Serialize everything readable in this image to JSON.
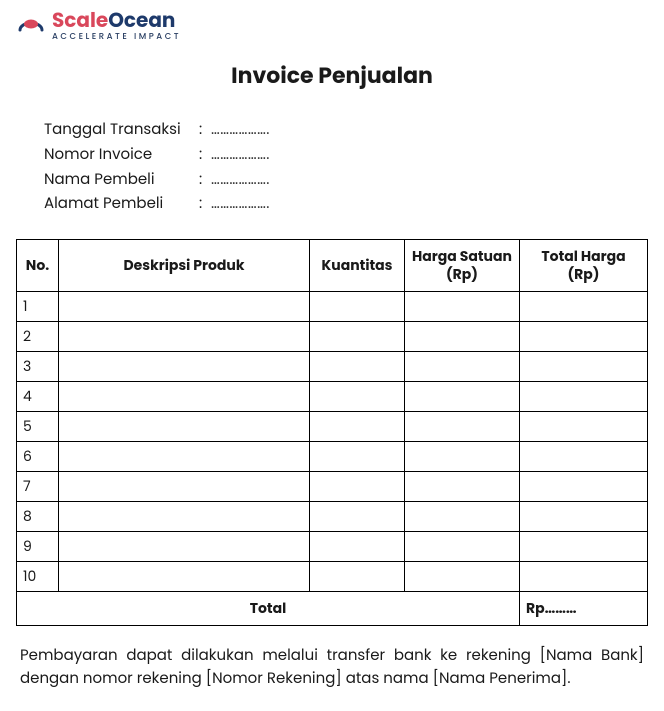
{
  "brand": {
    "first": "Scale",
    "second": "Ocean",
    "tagline": "ACCELERATE IMPACT",
    "colors": {
      "first": "#d9475b",
      "second": "#1e3a6b",
      "tagline": "#2a3f63",
      "icon_outer": "#1e3a6b",
      "icon_inner": "#d9475b"
    }
  },
  "title": "Invoice Penjualan",
  "meta": {
    "rows": [
      {
        "label": "Tanggal Transaksi",
        "value": "………………."
      },
      {
        "label": "Nomor Invoice",
        "value": "………………."
      },
      {
        "label": "Nama Pembeli",
        "value": "………………."
      },
      {
        "label": "Alamat Pembeli",
        "value": "………………."
      }
    ],
    "colon": ":"
  },
  "table": {
    "columns": [
      "No.",
      "Deskripsi Produk",
      "Kuantitas",
      "Harga Satuan (Rp)",
      "Total Harga (Rp)"
    ],
    "rows": [
      {
        "no": "1",
        "desc": "",
        "qty": "",
        "unit": "",
        "total": ""
      },
      {
        "no": "2",
        "desc": "",
        "qty": "",
        "unit": "",
        "total": ""
      },
      {
        "no": "3",
        "desc": "",
        "qty": "",
        "unit": "",
        "total": ""
      },
      {
        "no": "4",
        "desc": "",
        "qty": "",
        "unit": "",
        "total": ""
      },
      {
        "no": "5",
        "desc": "",
        "qty": "",
        "unit": "",
        "total": ""
      },
      {
        "no": "6",
        "desc": "",
        "qty": "",
        "unit": "",
        "total": ""
      },
      {
        "no": "7",
        "desc": "",
        "qty": "",
        "unit": "",
        "total": ""
      },
      {
        "no": "8",
        "desc": "",
        "qty": "",
        "unit": "",
        "total": ""
      },
      {
        "no": "9",
        "desc": "",
        "qty": "",
        "unit": "",
        "total": ""
      },
      {
        "no": "10",
        "desc": "",
        "qty": "",
        "unit": "",
        "total": ""
      }
    ],
    "total_label": "Total",
    "total_value": "Rp………"
  },
  "footer_note": "Pembayaran dapat dilakukan melalui transfer bank ke rekening [Nama Bank] dengan nomor rekening [Nomor Rekening] atas nama [Nama Penerima]."
}
